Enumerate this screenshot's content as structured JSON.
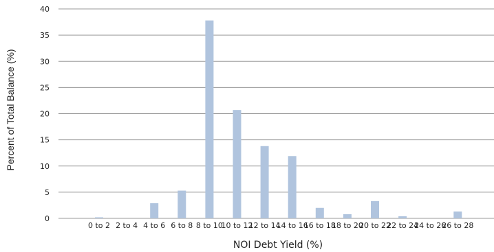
{
  "chart_data": {
    "type": "bar",
    "title": "",
    "xlabel": "NOI Debt Yield (%)",
    "ylabel": "Percent of Total Balance (%)",
    "ylim": [
      0,
      40
    ],
    "yticks": [
      "0",
      "5",
      "10",
      "15",
      "20",
      "25",
      "30",
      "35",
      "40"
    ],
    "grid": true,
    "legend": "none",
    "categories": [
      "0 to 2",
      "2 to 4",
      "4 to 6",
      "6 to 8",
      "8 to 10",
      "10 to 12",
      "12 to 14",
      "14 to 16",
      "16 to 18",
      "18 to 20",
      "20 to 22",
      "22 to 24",
      "24 to 26",
      "26 to 28"
    ],
    "values": [
      0.2,
      0,
      2.9,
      5.3,
      37.8,
      20.7,
      13.8,
      11.9,
      2.0,
      0.8,
      3.3,
      0.4,
      0,
      1.3
    ],
    "colors": {
      "bar": "#b0c4de",
      "grid": "#999999"
    }
  }
}
